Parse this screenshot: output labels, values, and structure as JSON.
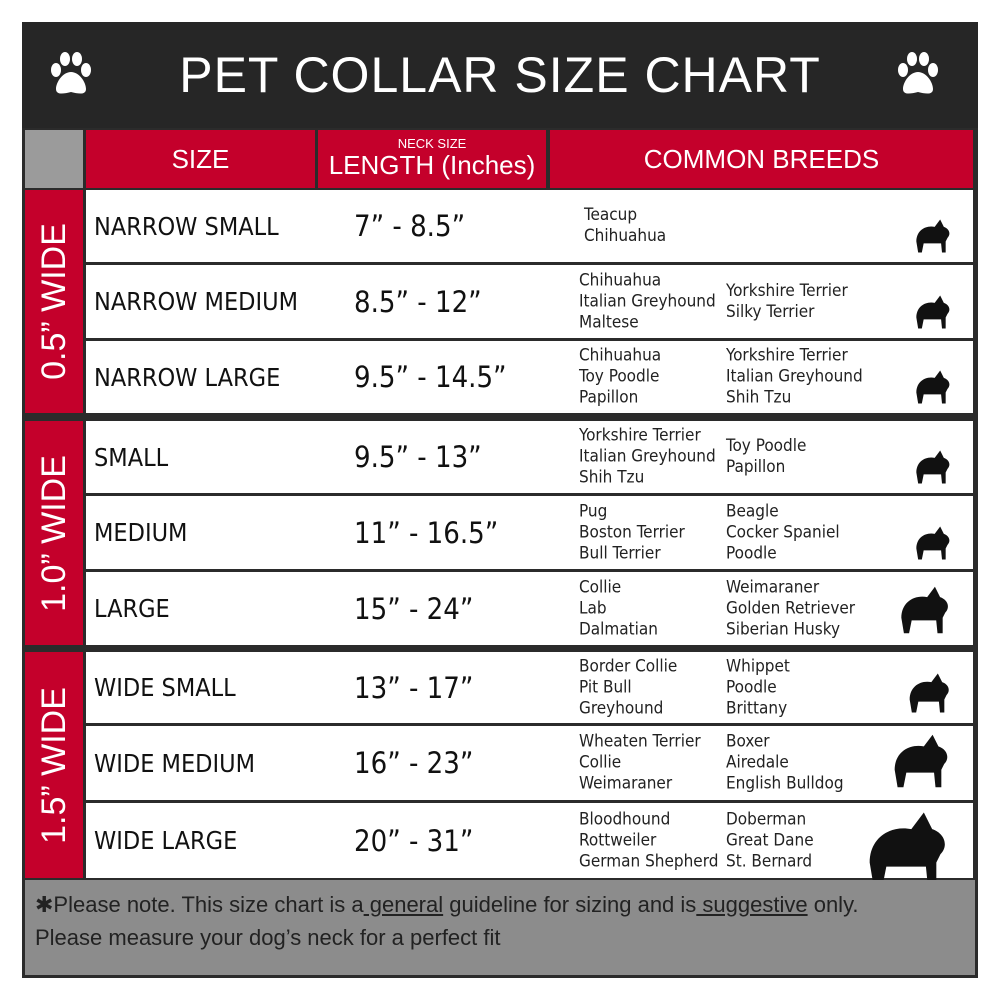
{
  "title": "PET COLLAR SIZE CHART",
  "icons": {
    "left": "paw-icon",
    "right": "paw-icon"
  },
  "colors": {
    "header_red": "#c4002b",
    "title_bg": "#262626",
    "footer_gray": "#8c8c8c"
  },
  "headers": {
    "size": "SIZE",
    "length_small": "NECK SIZE",
    "length": "LENGTH (Inches)",
    "breeds": "COMMON BREEDS"
  },
  "groups": [
    {
      "label": "0.5” WIDE",
      "rows": [
        {
          "size": "NARROW SMALL",
          "length": "7” - 8.5”",
          "breeds_a": [
            "Teacup",
            "Chihuahua"
          ],
          "breeds_b": [],
          "dog": "yorkie-silhouette-icon"
        },
        {
          "size": "NARROW MEDIUM",
          "length": "8.5” - 12”",
          "breeds_a": [
            "Chihuahua",
            "Italian Greyhound",
            "Maltese"
          ],
          "breeds_b": [
            "Yorkshire Terrier",
            "Silky Terrier"
          ],
          "dog": "chihuahua-silhouette-icon"
        },
        {
          "size": "NARROW LARGE",
          "length": "9.5” - 14.5”",
          "breeds_a": [
            "Chihuahua",
            "Toy Poodle",
            "Papillon"
          ],
          "breeds_b": [
            "Yorkshire Terrier",
            "Italian Greyhound",
            "Shih Tzu"
          ],
          "dog": "pomeranian-silhouette-icon"
        }
      ]
    },
    {
      "label": "1.0” WIDE",
      "rows": [
        {
          "size": "SMALL",
          "length": "9.5” - 13”",
          "breeds_a": [
            "Yorkshire Terrier",
            "Italian Greyhound",
            "Shih Tzu"
          ],
          "breeds_b": [
            "Toy Poodle",
            "Papillon"
          ],
          "dog": "pomeranian-silhouette-icon"
        },
        {
          "size": "MEDIUM",
          "length": "11” - 16.5”",
          "breeds_a": [
            "Pug",
            "Boston Terrier",
            "Bull Terrier"
          ],
          "breeds_b": [
            "Beagle",
            "Cocker Spaniel",
            "Poodle"
          ],
          "dog": "dachshund-silhouette-icon"
        },
        {
          "size": "LARGE",
          "length": "15” - 24”",
          "breeds_a": [
            "Collie",
            "Lab",
            "Dalmatian"
          ],
          "breeds_b": [
            "Weimaraner",
            "Golden Retriever",
            "Siberian Husky"
          ],
          "dog": "shepherd-silhouette-icon"
        }
      ]
    },
    {
      "label": "1.5” WIDE",
      "rows": [
        {
          "size": "WIDE SMALL",
          "length": "13” - 17”",
          "breeds_a": [
            "Border Collie",
            "Pit Bull",
            "Greyhound"
          ],
          "breeds_b": [
            "Whippet",
            "Poodle",
            "Brittany"
          ],
          "dog": "bulldog-silhouette-icon"
        },
        {
          "size": "WIDE MEDIUM",
          "length": "16” - 23”",
          "breeds_a": [
            "Wheaten Terrier",
            "Collie",
            "Weimaraner"
          ],
          "breeds_b": [
            "Boxer",
            "Airedale",
            "English Bulldog"
          ],
          "dog": "pitbull-silhouette-icon"
        },
        {
          "size": "WIDE LARGE",
          "length": "20” - 31”",
          "breeds_a": [
            "Bloodhound",
            "Rottweiler",
            "German Shepherd"
          ],
          "breeds_b": [
            "Doberman",
            "Great Dane",
            "St. Bernard"
          ],
          "dog": "doberman-silhouette-icon"
        }
      ]
    }
  ],
  "footer": {
    "line1_a": "✱Please note. This size chart is a",
    "line1_u1": " general",
    "line1_b": " guideline for sizing and is",
    "line1_u2": " suggestive",
    "line1_c": " only.",
    "line2": "Please measure your dog’s neck for a perfect fit"
  }
}
